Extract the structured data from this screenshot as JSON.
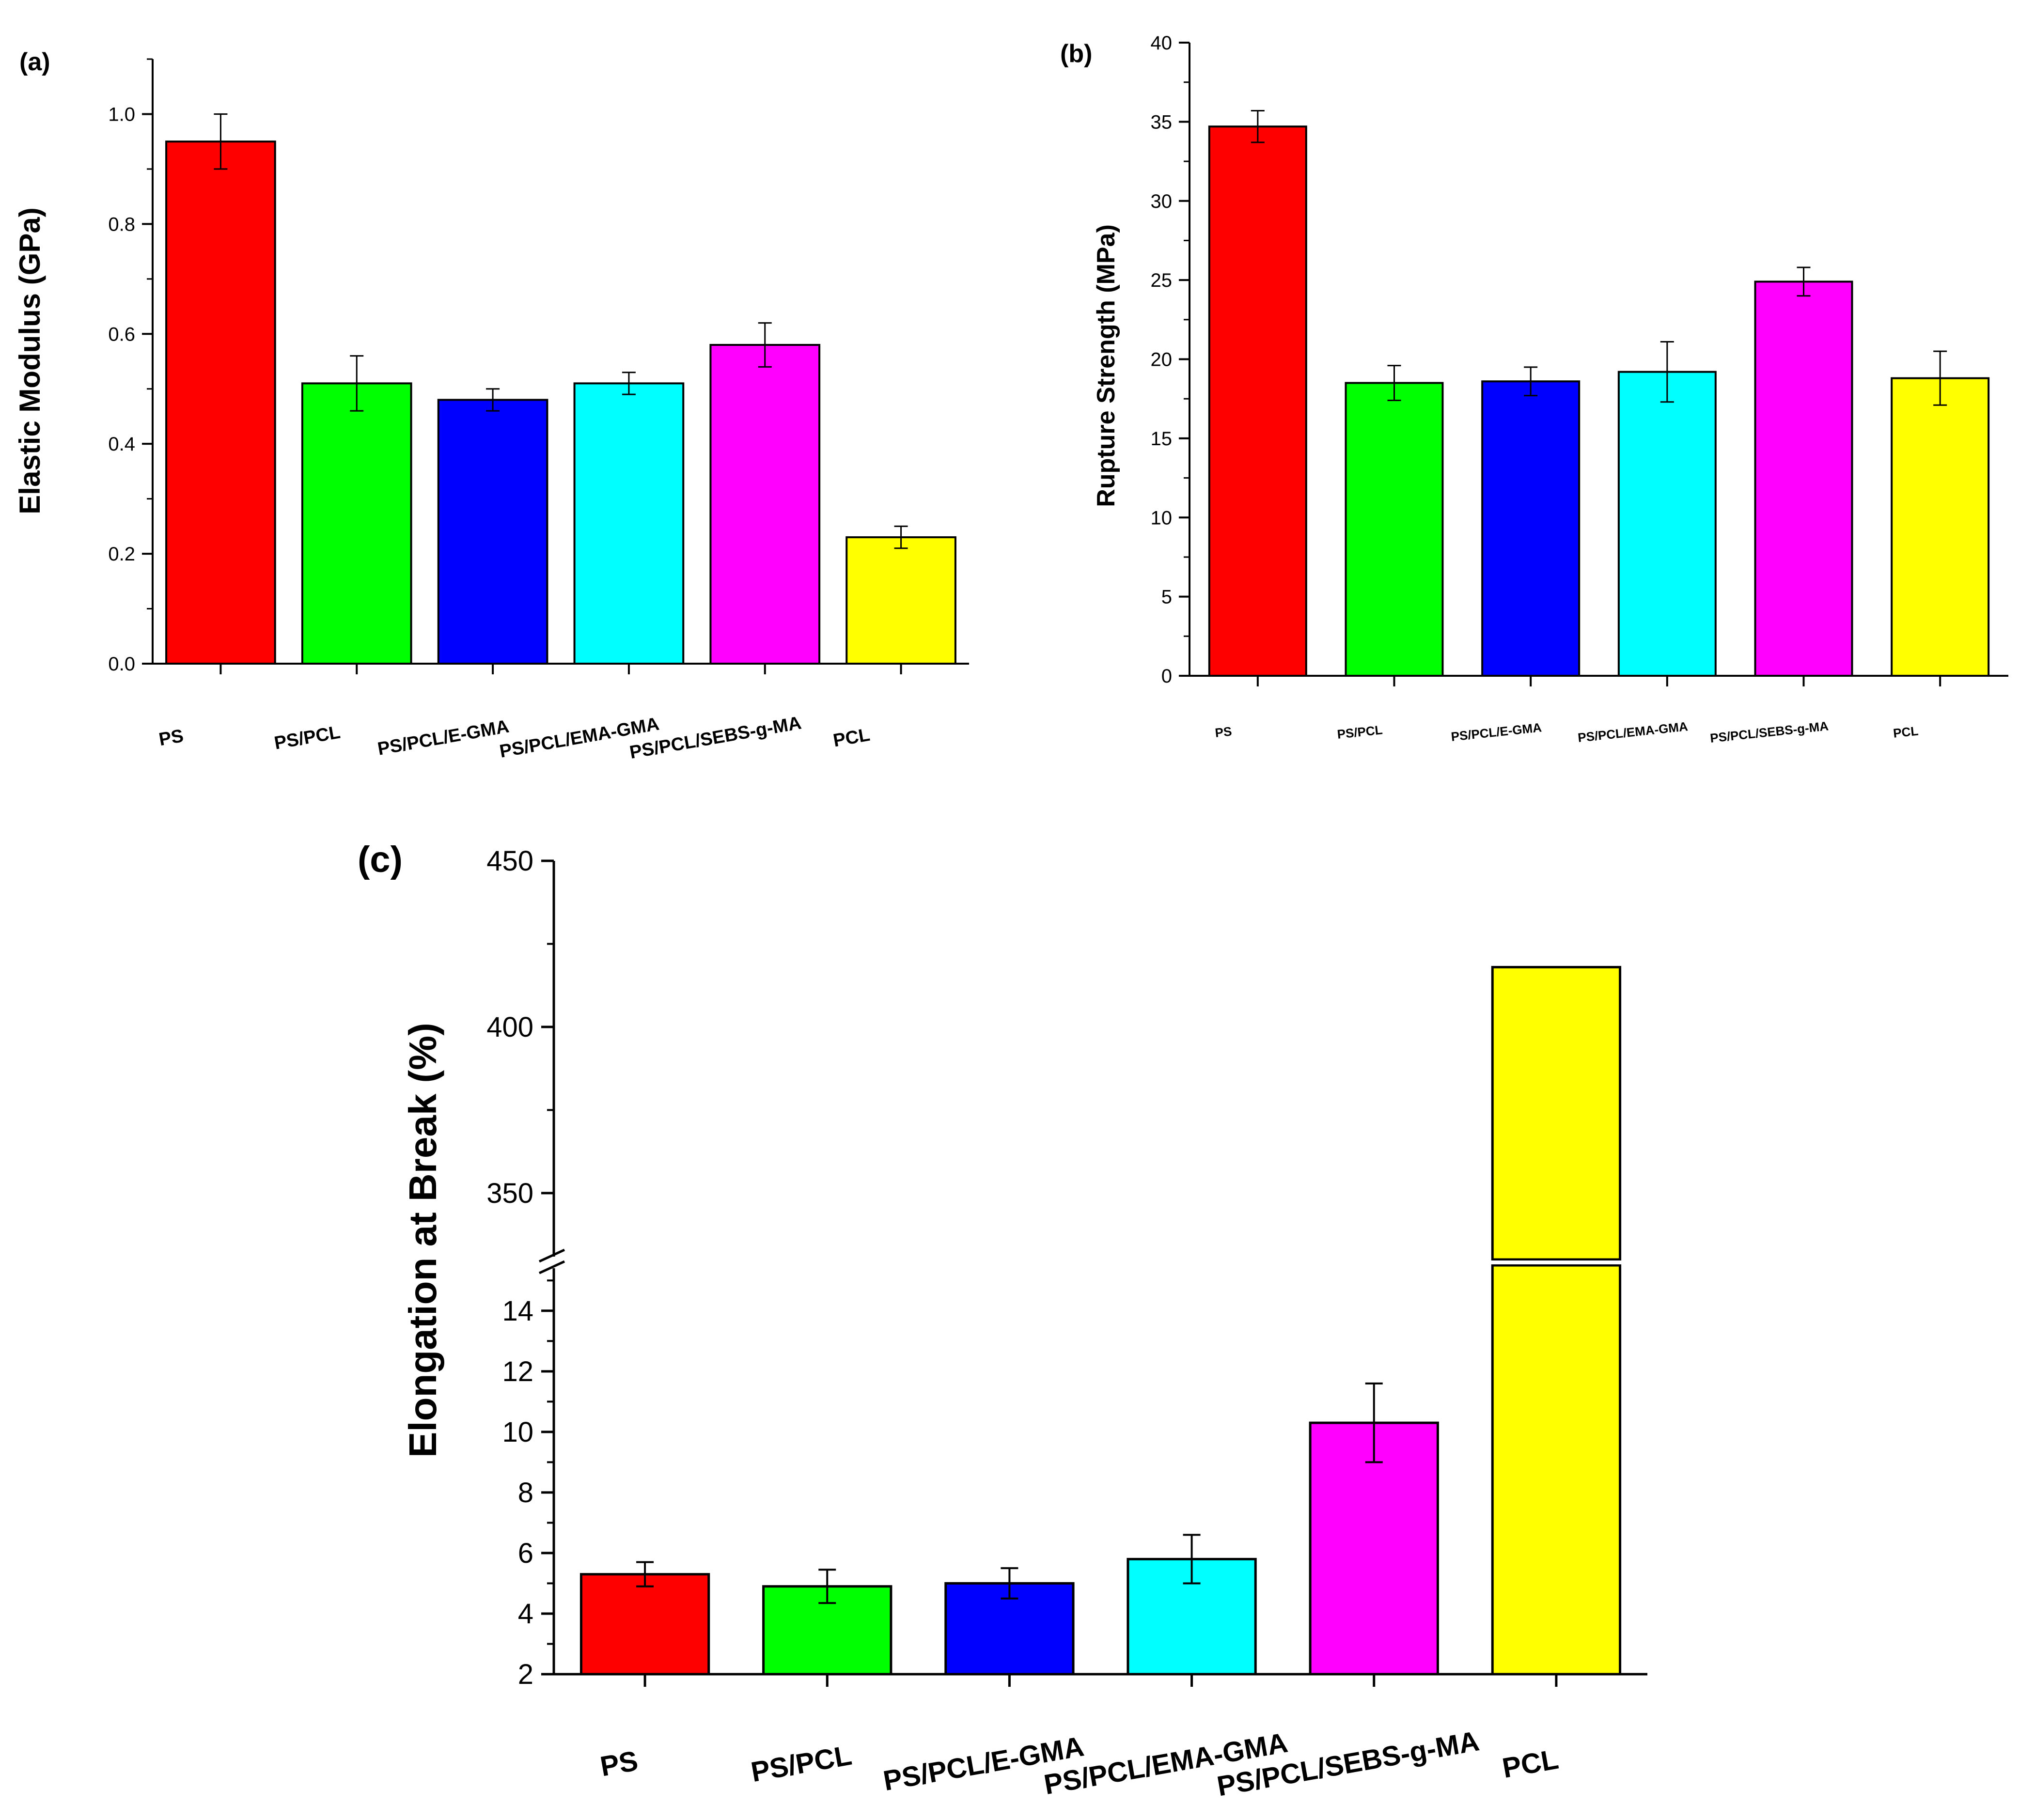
{
  "chart_data": [
    {
      "type": "bar",
      "panel_label": "(a)",
      "title": "",
      "xlabel": "",
      "ylabel": "Elastic Modulus (GPa)",
      "categories": [
        "PS",
        "PS/PCL",
        "PS/PCL/E-GMA",
        "PS/PCL/EMA-GMA",
        "PS/PCL/SEBS-g-MA",
        "PCL"
      ],
      "values": [
        0.95,
        0.51,
        0.48,
        0.51,
        0.58,
        0.23
      ],
      "errors": [
        0.05,
        0.05,
        0.02,
        0.02,
        0.04,
        0.02
      ],
      "colors": [
        "#ff0000",
        "#00ff00",
        "#0000ff",
        "#00ffff",
        "#ff00ff",
        "#ffff00"
      ],
      "ylim": [
        0,
        1.1
      ],
      "yticks": [
        "0.0",
        "0.2",
        "0.4",
        "0.6",
        "0.8",
        "1.0"
      ],
      "grid": false
    },
    {
      "type": "bar",
      "panel_label": "(b)",
      "title": "",
      "xlabel": "",
      "ylabel": "Rupture Strength  (MPa)",
      "categories": [
        "PS",
        "PS/PCL",
        "PS/PCL/E-GMA",
        "PS/PCL/EMA-GMA",
        "PS/PCL/SEBS-g-MA",
        "PCL"
      ],
      "values": [
        34.7,
        18.5,
        18.6,
        19.2,
        24.9,
        18.8
      ],
      "errors": [
        1.0,
        1.1,
        0.9,
        1.9,
        0.9,
        1.7
      ],
      "colors": [
        "#ff0000",
        "#00ff00",
        "#0000ff",
        "#00ffff",
        "#ff00ff",
        "#ffff00"
      ],
      "ylim": [
        0,
        40
      ],
      "yticks": [
        "0",
        "5",
        "10",
        "15",
        "20",
        "25",
        "30",
        "35",
        "40"
      ],
      "grid": false
    },
    {
      "type": "bar",
      "panel_label": "(c)",
      "title": "",
      "xlabel": "",
      "ylabel": "Elongation at Break  (%)",
      "categories": [
        "PS",
        "PS/PCL",
        "PS/PCL/E-GMA",
        "PS/PCL/EMA-GMA",
        "PS/PCL/SEBS-g-MA",
        "PCL"
      ],
      "values": [
        5.3,
        4.9,
        5.0,
        5.8,
        10.3,
        418
      ],
      "errors": [
        0.4,
        0.55,
        0.5,
        0.8,
        1.3,
        0
      ],
      "colors": [
        "#ff0000",
        "#00ff00",
        "#0000ff",
        "#00ffff",
        "#ff00ff",
        "#ffff00"
      ],
      "ylim_lower": [
        2,
        15.5
      ],
      "ylim_upper": [
        330,
        450
      ],
      "yticks_lower": [
        "2",
        "4",
        "6",
        "8",
        "10",
        "12",
        "14"
      ],
      "yticks_upper": [
        "350",
        "400",
        "450"
      ],
      "axis_break": true,
      "grid": false
    }
  ]
}
